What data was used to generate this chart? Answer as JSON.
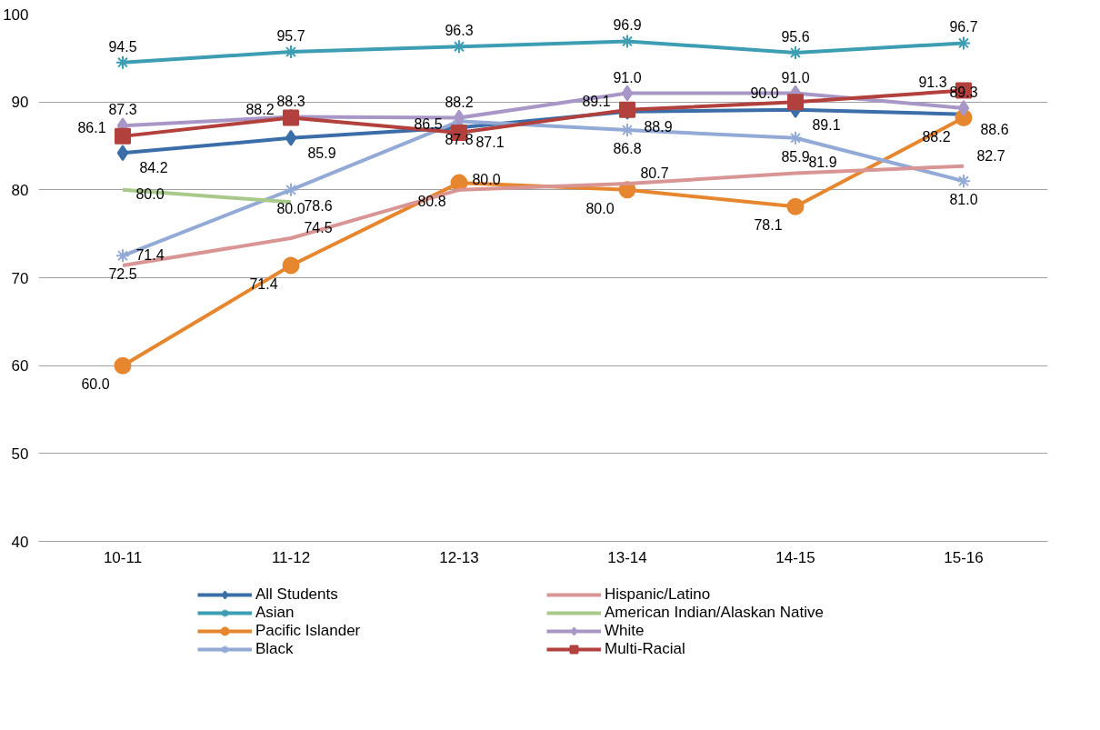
{
  "chart_data": {
    "type": "line",
    "categories": [
      "10-11",
      "11-12",
      "12-13",
      "13-14",
      "14-15",
      "15-16"
    ],
    "ylim": [
      40,
      100
    ],
    "yticks": [
      40,
      50,
      60,
      70,
      80,
      90,
      100
    ],
    "grid": "y",
    "legend": "bottom",
    "series": [
      {
        "name": "All Students",
        "color": "#3b6ea8",
        "marker": "diamond",
        "values": [
          84.2,
          85.9,
          87.1,
          88.9,
          89.1,
          88.6
        ],
        "value_labels": [
          "84.2",
          "85.9",
          "87.1",
          "88.9",
          "89.1",
          "88.6"
        ]
      },
      {
        "name": "Asian",
        "color": "#3c9db3",
        "marker": "cross",
        "values": [
          94.5,
          95.7,
          96.3,
          96.9,
          95.6,
          96.7
        ],
        "value_labels": [
          "94.5",
          "95.7",
          "96.3",
          "96.9",
          "95.6",
          "96.7"
        ]
      },
      {
        "name": "Pacific Islander",
        "color": "#e6862e",
        "marker": "circle",
        "values": [
          60.0,
          71.4,
          80.8,
          80.0,
          78.1,
          88.2
        ],
        "value_labels": [
          "60.0",
          "71.4",
          "80.8",
          "80.0",
          "78.1",
          "88.2"
        ]
      },
      {
        "name": "Black",
        "color": "#93aad6",
        "marker": "cross",
        "values": [
          72.5,
          80.0,
          87.8,
          86.8,
          85.9,
          81.0
        ],
        "value_labels": [
          "72.5",
          "80.0",
          "87.8",
          "86.8",
          "85.9",
          "81.0"
        ]
      },
      {
        "name": "Hispanic/Latino",
        "color": "#d99594",
        "marker": "none",
        "values": [
          71.4,
          74.5,
          80.0,
          80.7,
          81.9,
          82.7
        ],
        "value_labels": [
          "71.4",
          "74.5",
          "80.0",
          "80.7",
          "81.9",
          "82.7"
        ]
      },
      {
        "name": "American Indian/Alaskan Native",
        "color": "#a9c98a",
        "marker": "none",
        "values": [
          80.0,
          78.6,
          null,
          null,
          null,
          null
        ],
        "value_labels": [
          "80.0",
          "78.6",
          null,
          null,
          null,
          null
        ]
      },
      {
        "name": "White",
        "color": "#a897c6",
        "marker": "diamond",
        "values": [
          87.3,
          88.3,
          88.2,
          91.0,
          91.0,
          89.3
        ],
        "value_labels": [
          "87.3",
          "88.3",
          "88.2",
          "91.0",
          "91.0",
          "89.3"
        ]
      },
      {
        "name": "Multi-Racial",
        "color": "#b2403c",
        "marker": "square",
        "values": [
          86.1,
          88.2,
          86.5,
          89.1,
          90.0,
          91.3
        ],
        "value_labels": [
          "86.1",
          "88.2",
          "86.5",
          "89.1",
          "90.0",
          "91.3"
        ]
      }
    ]
  }
}
